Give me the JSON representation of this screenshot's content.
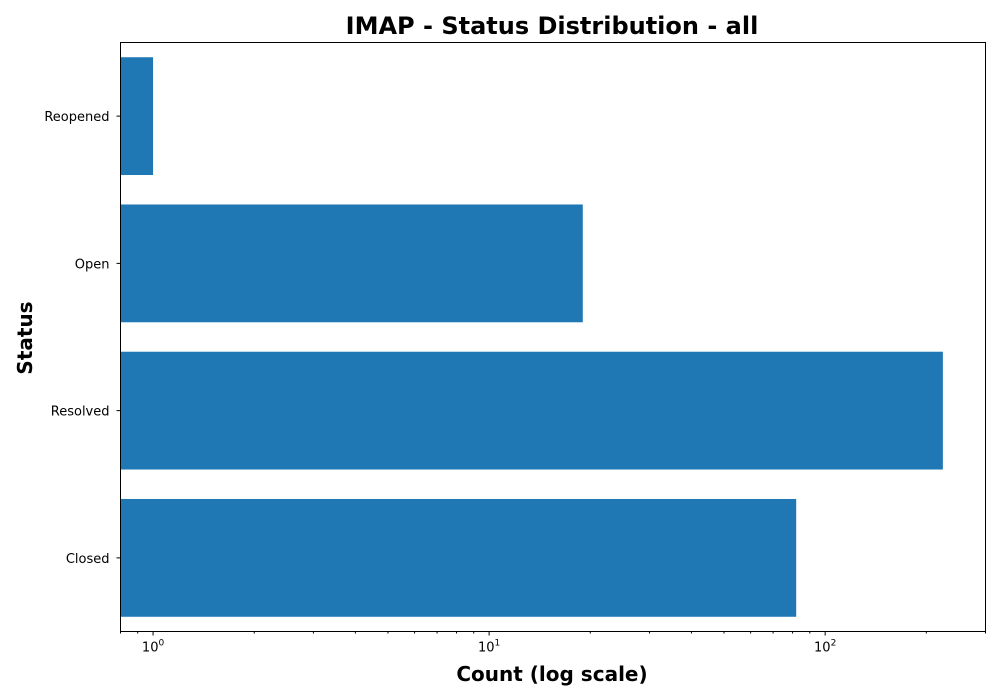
{
  "chart_data": {
    "type": "bar",
    "orientation": "horizontal",
    "title": "IMAP - Status Distribution - all",
    "xlabel": "Count (log scale)",
    "ylabel": "Status",
    "xscale": "log",
    "xlim": [
      0.8,
      300
    ],
    "categories": [
      "Closed",
      "Resolved",
      "Open",
      "Reopened"
    ],
    "values": [
      82,
      224,
      19,
      1
    ],
    "bar_color": "#1f77b4",
    "x_ticks": [
      {
        "value": 1,
        "base": "10",
        "exp": "0"
      },
      {
        "value": 10,
        "base": "10",
        "exp": "1"
      },
      {
        "value": 100,
        "base": "10",
        "exp": "2"
      }
    ],
    "grid": false
  }
}
